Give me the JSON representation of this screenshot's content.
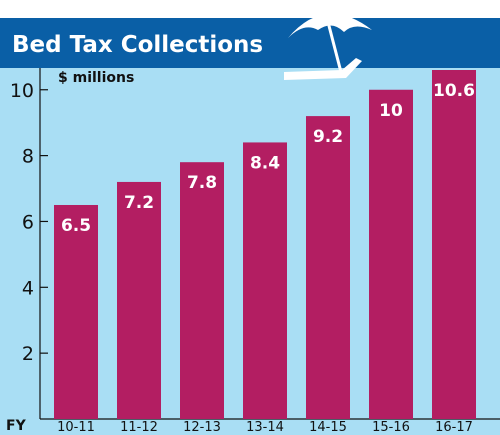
{
  "colors": {
    "title_band": "#0a5fa6",
    "plot_bg": "#a9def4",
    "bar": "#b31e62",
    "icon": "#ffffff"
  },
  "icon": "beach-umbrella-lounge-chair-icon",
  "chart_data": {
    "type": "bar",
    "title": "Bed Tax Collections",
    "unit_label": "$ millions",
    "x_prefix": "FY",
    "categories": [
      "10-11",
      "11-12",
      "12-13",
      "13-14",
      "14-15",
      "15-16",
      "16-17"
    ],
    "values": [
      6.5,
      7.2,
      7.8,
      8.4,
      9.2,
      10,
      10.6
    ],
    "data_labels": [
      "6.5",
      "7.2",
      "7.8",
      "8.4",
      "9.2",
      "10",
      "10.6"
    ],
    "yticks": [
      2,
      4,
      6,
      8,
      10
    ],
    "ylim": [
      0,
      10.6
    ],
    "grid": false,
    "legend": "none"
  }
}
